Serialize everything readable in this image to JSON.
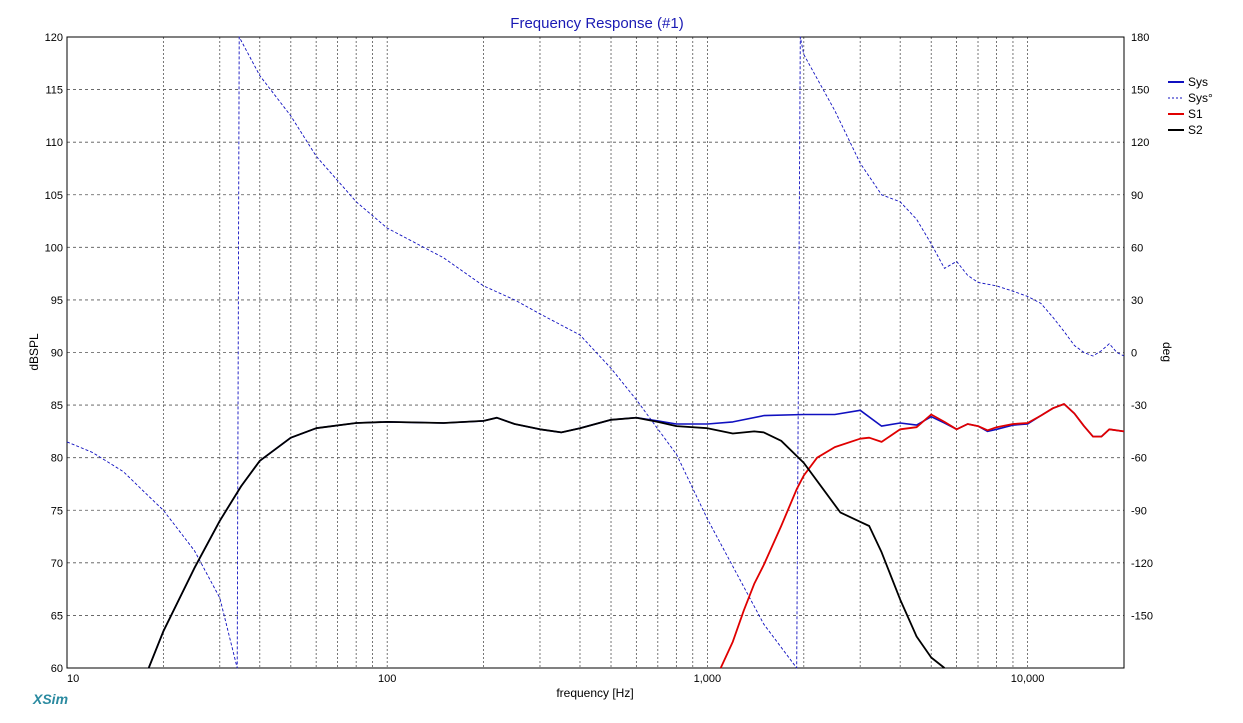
{
  "app_brand": "XSim",
  "chart_data": {
    "type": "line",
    "title": "Frequency Response (#1)",
    "xlabel": "frequency [Hz]",
    "ylabel": "dBSPL",
    "y2label": "deg",
    "xscale": "log",
    "xlim": [
      10,
      20000
    ],
    "ylim": [
      60,
      120
    ],
    "y2lim": [
      -180,
      180
    ],
    "grid": true,
    "legend_position": "top-right",
    "x_ticks": [
      {
        "value": 10,
        "label": "10"
      },
      {
        "value": 100,
        "label": "100"
      },
      {
        "value": 1000,
        "label": "1,000"
      },
      {
        "value": 10000,
        "label": "10,000"
      }
    ],
    "y_ticks": [
      60,
      65,
      70,
      75,
      80,
      85,
      90,
      95,
      100,
      105,
      110,
      115,
      120
    ],
    "y2_ticks": [
      -150,
      -120,
      -90,
      -60,
      -30,
      0,
      30,
      60,
      90,
      120,
      150,
      180
    ],
    "series": [
      {
        "name": "Sys",
        "axis": "left",
        "color": "#1010c0",
        "style": "solid",
        "points": [
          [
            18,
            60
          ],
          [
            20,
            63.5
          ],
          [
            25,
            69.5
          ],
          [
            30,
            74
          ],
          [
            35,
            77.3
          ],
          [
            40,
            79.7
          ],
          [
            50,
            81.9
          ],
          [
            60,
            82.8
          ],
          [
            80,
            83.3
          ],
          [
            100,
            83.4
          ],
          [
            150,
            83.3
          ],
          [
            200,
            83.5
          ],
          [
            220,
            83.8
          ],
          [
            250,
            83.2
          ],
          [
            300,
            82.7
          ],
          [
            350,
            82.4
          ],
          [
            400,
            82.8
          ],
          [
            500,
            83.6
          ],
          [
            600,
            83.8
          ],
          [
            700,
            83.5
          ],
          [
            800,
            83.2
          ],
          [
            1000,
            83.2
          ],
          [
            1200,
            83.4
          ],
          [
            1500,
            84
          ],
          [
            2000,
            84.1
          ],
          [
            2500,
            84.1
          ],
          [
            3000,
            84.5
          ],
          [
            3500,
            83
          ],
          [
            4000,
            83.3
          ],
          [
            4500,
            83.1
          ],
          [
            5000,
            83.9
          ],
          [
            5500,
            83.3
          ],
          [
            6000,
            82.7
          ],
          [
            6500,
            83.2
          ],
          [
            7000,
            83
          ],
          [
            7500,
            82.5
          ],
          [
            8000,
            82.7
          ],
          [
            9000,
            83.1
          ],
          [
            10000,
            83.2
          ],
          [
            11000,
            84
          ],
          [
            12000,
            84.7
          ],
          [
            13000,
            85.1
          ],
          [
            14000,
            84.2
          ],
          [
            15000,
            83
          ],
          [
            16000,
            82
          ],
          [
            17000,
            82
          ],
          [
            18000,
            82.7
          ],
          [
            20000,
            82.5
          ]
        ]
      },
      {
        "name": "Sys°",
        "axis": "right",
        "color": "#1010c0",
        "style": "dashed",
        "points": [
          [
            10,
            -51
          ],
          [
            12,
            -57
          ],
          [
            15,
            -68
          ],
          [
            18,
            -82
          ],
          [
            20,
            -90
          ],
          [
            25,
            -113
          ],
          [
            30,
            -140
          ],
          [
            34,
            -180
          ],
          [
            34.5,
            180
          ],
          [
            40,
            158
          ],
          [
            50,
            135
          ],
          [
            60,
            112
          ],
          [
            80,
            86
          ],
          [
            100,
            71
          ],
          [
            150,
            54
          ],
          [
            200,
            38
          ],
          [
            250,
            30
          ],
          [
            300,
            22
          ],
          [
            400,
            10
          ],
          [
            500,
            -9
          ],
          [
            600,
            -27
          ],
          [
            800,
            -58
          ],
          [
            1000,
            -95
          ],
          [
            1200,
            -122
          ],
          [
            1500,
            -155
          ],
          [
            1900,
            -180
          ],
          [
            1950,
            180
          ],
          [
            2000,
            170
          ],
          [
            2500,
            138
          ],
          [
            3000,
            108
          ],
          [
            3500,
            90
          ],
          [
            4000,
            86
          ],
          [
            4500,
            76
          ],
          [
            5000,
            62
          ],
          [
            5500,
            48
          ],
          [
            6000,
            52
          ],
          [
            6500,
            44
          ],
          [
            7000,
            40
          ],
          [
            8000,
            38
          ],
          [
            9000,
            35
          ],
          [
            10000,
            32
          ],
          [
            11000,
            28
          ],
          [
            12000,
            20
          ],
          [
            13000,
            12
          ],
          [
            14000,
            4
          ],
          [
            15000,
            0
          ],
          [
            16000,
            -2
          ],
          [
            17000,
            1
          ],
          [
            18000,
            5
          ],
          [
            19000,
            0
          ],
          [
            20000,
            -2
          ]
        ]
      },
      {
        "name": "S1",
        "axis": "left",
        "color": "#e00000",
        "style": "solid",
        "points": [
          [
            1100,
            60
          ],
          [
            1200,
            62.5
          ],
          [
            1300,
            65.5
          ],
          [
            1400,
            68
          ],
          [
            1500,
            69.8
          ],
          [
            1700,
            73.5
          ],
          [
            1900,
            77
          ],
          [
            2000,
            78.3
          ],
          [
            2200,
            80
          ],
          [
            2500,
            81
          ],
          [
            3000,
            81.8
          ],
          [
            3200,
            81.9
          ],
          [
            3500,
            81.5
          ],
          [
            4000,
            82.7
          ],
          [
            4500,
            82.9
          ],
          [
            5000,
            84.1
          ],
          [
            5500,
            83.4
          ],
          [
            6000,
            82.7
          ],
          [
            6500,
            83.2
          ],
          [
            7000,
            83
          ],
          [
            7500,
            82.6
          ],
          [
            8000,
            82.9
          ],
          [
            9000,
            83.2
          ],
          [
            10000,
            83.3
          ],
          [
            11000,
            84
          ],
          [
            12000,
            84.7
          ],
          [
            13000,
            85.1
          ],
          [
            14000,
            84.2
          ],
          [
            15000,
            83
          ],
          [
            16000,
            82
          ],
          [
            17000,
            82
          ],
          [
            18000,
            82.7
          ],
          [
            20000,
            82.5
          ]
        ]
      },
      {
        "name": "S2",
        "axis": "left",
        "color": "#000000",
        "style": "solid",
        "points": [
          [
            18,
            60
          ],
          [
            20,
            63.5
          ],
          [
            25,
            69.5
          ],
          [
            30,
            74
          ],
          [
            35,
            77.3
          ],
          [
            40,
            79.7
          ],
          [
            50,
            81.9
          ],
          [
            60,
            82.8
          ],
          [
            80,
            83.3
          ],
          [
            100,
            83.4
          ],
          [
            150,
            83.3
          ],
          [
            200,
            83.5
          ],
          [
            220,
            83.8
          ],
          [
            250,
            83.2
          ],
          [
            300,
            82.7
          ],
          [
            350,
            82.4
          ],
          [
            400,
            82.8
          ],
          [
            500,
            83.6
          ],
          [
            600,
            83.8
          ],
          [
            700,
            83.4
          ],
          [
            800,
            83
          ],
          [
            1000,
            82.8
          ],
          [
            1200,
            82.3
          ],
          [
            1400,
            82.5
          ],
          [
            1500,
            82.4
          ],
          [
            1700,
            81.6
          ],
          [
            2000,
            79.5
          ],
          [
            2300,
            77
          ],
          [
            2600,
            74.8
          ],
          [
            3000,
            73.9
          ],
          [
            3200,
            73.5
          ],
          [
            3500,
            71
          ],
          [
            4000,
            66.5
          ],
          [
            4500,
            63
          ],
          [
            5000,
            61
          ],
          [
            5500,
            60
          ]
        ]
      }
    ]
  }
}
